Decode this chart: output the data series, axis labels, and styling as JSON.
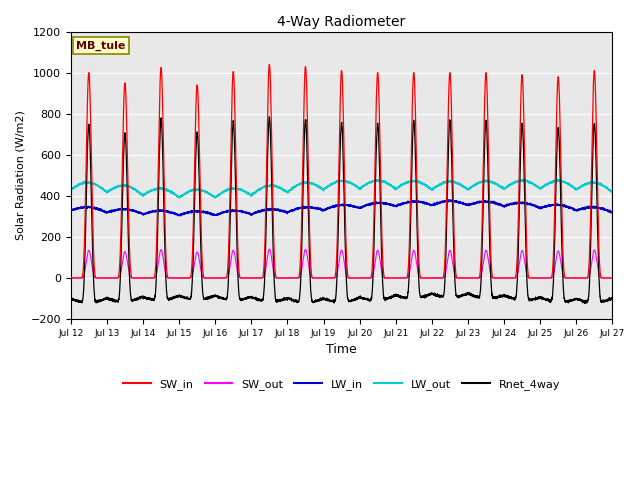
{
  "title": "4-Way Radiometer",
  "xlabel": "Time",
  "ylabel": "Solar Radiation (W/m2)",
  "xlim": [
    0,
    15
  ],
  "ylim": [
    -200,
    1200
  ],
  "yticks": [
    -200,
    0,
    200,
    400,
    600,
    800,
    1000,
    1200
  ],
  "xtick_labels": [
    "Jul 12",
    "Jul 13",
    "Jul 14",
    "Jul 15",
    "Jul 16",
    "Jul 17",
    "Jul 18",
    "Jul 19",
    "Jul 20",
    "Jul 21",
    "Jul 22",
    "Jul 23",
    "Jul 24",
    "Jul 25",
    "Jul 26",
    "Jul 27"
  ],
  "annotation_text": "MB_tule",
  "annotation_bg": "#ffffcc",
  "annotation_border": "#888800",
  "colors": {
    "SW_in": "#ff0000",
    "SW_out": "#ff00ff",
    "LW_in": "#0000cc",
    "LW_out": "#00cccc",
    "Rnet_4way": "#000000"
  },
  "legend_labels": [
    "SW_in",
    "SW_out",
    "LW_in",
    "LW_out",
    "Rnet_4way"
  ],
  "bg_color": "#e8e8e8",
  "n_days": 15,
  "points_per_day": 288,
  "sw_in_peaks": [
    1000,
    950,
    1025,
    940,
    1005,
    1040,
    1030,
    1010,
    1000,
    1000,
    1000,
    1000,
    990,
    980,
    1010
  ],
  "day_start": 0.25,
  "day_end": 0.75
}
